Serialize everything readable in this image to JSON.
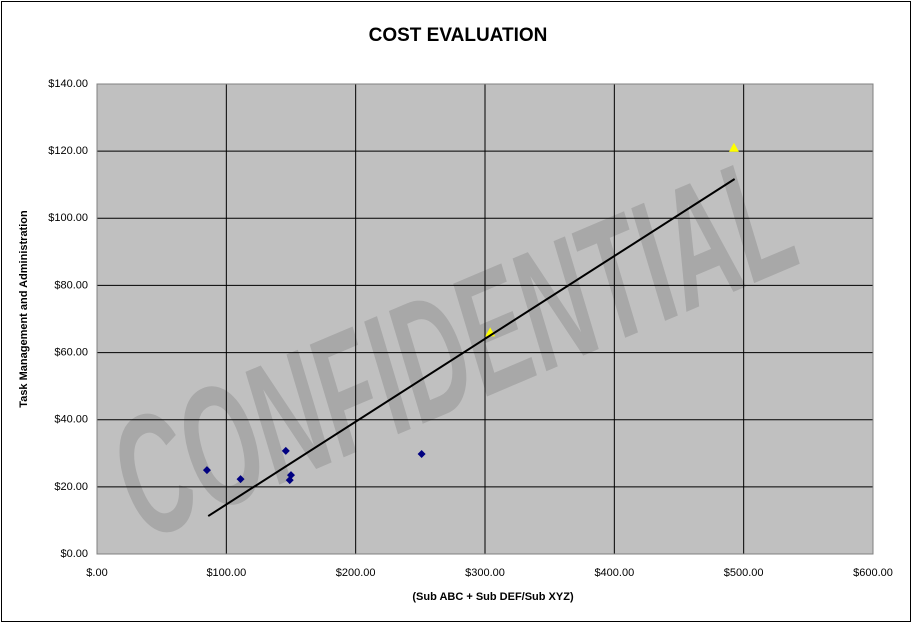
{
  "chart_data": {
    "type": "scatter",
    "title": "COST EVALUATION",
    "x_label": "(Sub ABC + Sub DEF/Sub XYZ)",
    "y_label": "Task Management and Administration",
    "watermark": "CONFIDENTIAL",
    "xlim": [
      0,
      600
    ],
    "xticks": [
      {
        "value": 0,
        "label": "$.00"
      },
      {
        "value": 100,
        "label": "$100.00"
      },
      {
        "value": 200,
        "label": "$200.00"
      },
      {
        "value": 300,
        "label": "$300.00"
      },
      {
        "value": 400,
        "label": "$400.00"
      },
      {
        "value": 500,
        "label": "$500.00"
      },
      {
        "value": 600,
        "label": "$600.00"
      }
    ],
    "ylim": [
      0,
      140
    ],
    "yticks": [
      {
        "value": 0,
        "label": "$0.00"
      },
      {
        "value": 20,
        "label": "$20.00"
      },
      {
        "value": 40,
        "label": "$40.00"
      },
      {
        "value": 60,
        "label": "$60.00"
      },
      {
        "value": 80,
        "label": "$80.00"
      },
      {
        "value": 100,
        "label": "$100.00"
      },
      {
        "value": 120,
        "label": "$120.00"
      },
      {
        "value": 140,
        "label": "$140.00"
      }
    ],
    "grid": true,
    "series": [
      {
        "color": "#000080",
        "marker": "diamond",
        "x": [
          85,
          111,
          146,
          150,
          149,
          251
        ],
        "values": [
          25.0,
          22.3,
          30.7,
          23.5,
          22.0,
          29.8
        ]
      },
      {
        "color": "#ffff00",
        "marker": "triangle",
        "x": [
          492.5,
          304
        ],
        "values": [
          121,
          66
        ]
      }
    ],
    "trendline": {
      "color": "#000000",
      "x": [
        86,
        493
      ],
      "y": [
        11.3,
        111.7
      ]
    }
  }
}
